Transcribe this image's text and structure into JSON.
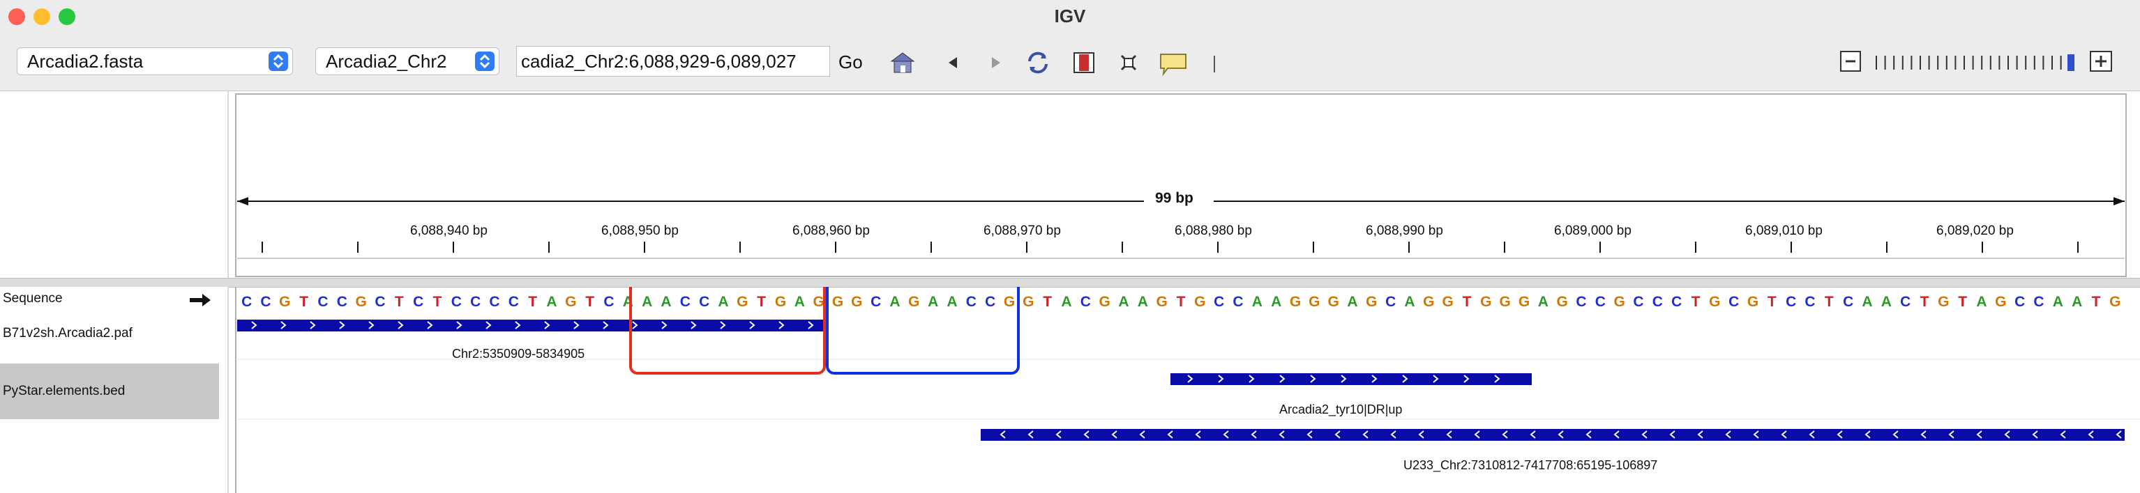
{
  "window": {
    "title": "IGV"
  },
  "toolbar": {
    "genome": "Arcadia2.fasta",
    "chromosome": "Arcadia2_Chr2",
    "locus": "cadia2_Chr2:6,088,929-6,089,027",
    "go_label": "Go"
  },
  "ruler": {
    "span_label": "99 bp",
    "ticks": [
      "6,088,940 bp",
      "6,088,950 bp",
      "6,088,960 bp",
      "6,088,970 bp",
      "6,088,980 bp",
      "6,088,990 bp",
      "6,089,000 bp",
      "6,089,010 bp",
      "6,089,020 bp"
    ]
  },
  "tracks": {
    "sequence_label": "Sequence",
    "paf_label": "B71v2sh.Arcadia2.paf",
    "bed_label": "PyStar.elements.bed",
    "sequence": "CCGTCCGCTCTCCCCTAGTCAAACCAGTGAGGGCAGAACCGGTACGAAGTGCCAAGGGAGCAGGTGGGAGCCGCCCTGCGTCCTCAACTGTAGCCAATG",
    "paf_feature": "Chr2:5350909-5834905",
    "bed_feature_1": "Arcadia2_tyr10|DR|up",
    "bed_feature_2": "U233_Chr2:7310812-7417708:65195-106897"
  },
  "colors": {
    "A": "#2a9a2a",
    "C": "#2030d0",
    "G": "#d07800",
    "T": "#d02020",
    "feature": "#0a0ca8",
    "red_box": "#e03020",
    "blue_box": "#1030e0"
  }
}
